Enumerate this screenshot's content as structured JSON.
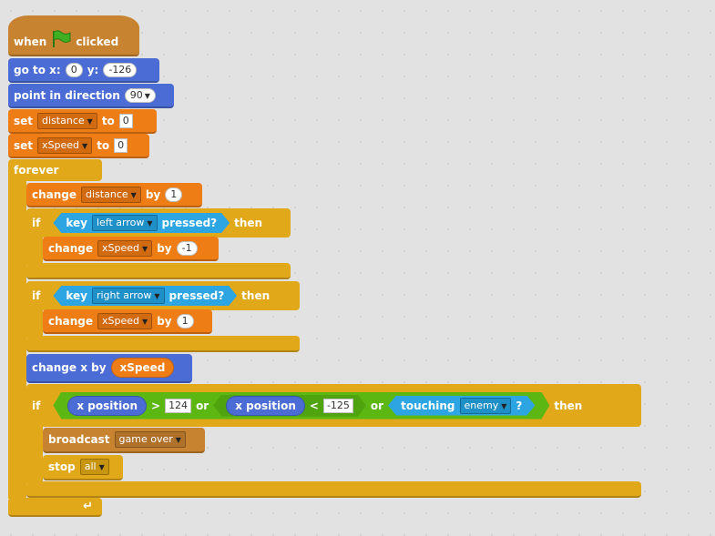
{
  "hat": {
    "when": "when",
    "clicked": "clicked"
  },
  "goto": {
    "label_go": "go to x:",
    "x": "0",
    "label_y": "y:",
    "y": "-126"
  },
  "point": {
    "label": "point in direction",
    "value": "90"
  },
  "set_distance": {
    "set": "set",
    "var": "distance",
    "to": "to",
    "value": "0"
  },
  "set_xspeed": {
    "set": "set",
    "var": "xSpeed",
    "to": "to",
    "value": "0"
  },
  "forever": {
    "label": "forever",
    "loop_icon": "↵"
  },
  "change_distance": {
    "change": "change",
    "var": "distance",
    "by": "by",
    "value": "1"
  },
  "if_left": {
    "if": "if",
    "key": "key",
    "key_value": "left arrow",
    "pressed": "pressed?",
    "then": "then"
  },
  "change_left": {
    "change": "change",
    "var": "xSpeed",
    "by": "by",
    "value": "-1"
  },
  "if_right": {
    "if": "if",
    "key": "key",
    "key_value": "right arrow",
    "pressed": "pressed?",
    "then": "then"
  },
  "change_right": {
    "change": "change",
    "var": "xSpeed",
    "by": "by",
    "value": "1"
  },
  "change_x": {
    "label": "change x by",
    "reporter": "xSpeed"
  },
  "if_game": {
    "if": "if",
    "xpos1": "x position",
    "gt": ">",
    "val1": "124",
    "or1": "or",
    "xpos2": "x position",
    "lt": "<",
    "val2": "-125",
    "or2": "or",
    "touching": "touching",
    "touching_value": "enemy",
    "q": "?",
    "then": "then"
  },
  "broadcast": {
    "label": "broadcast",
    "value": "game over"
  },
  "stop": {
    "label": "stop",
    "value": "all"
  },
  "colors": {
    "motion": "#4a6cd4",
    "data": "#ee7d16",
    "control": "#e1a91a",
    "events": "#c88330",
    "sensing": "#2ca5e2",
    "operators": "#5cb712"
  },
  "icons": {
    "flag": "green-flag-icon",
    "dropdown": "dropdown-arrow-icon",
    "loop": "loop-arrow-icon"
  }
}
